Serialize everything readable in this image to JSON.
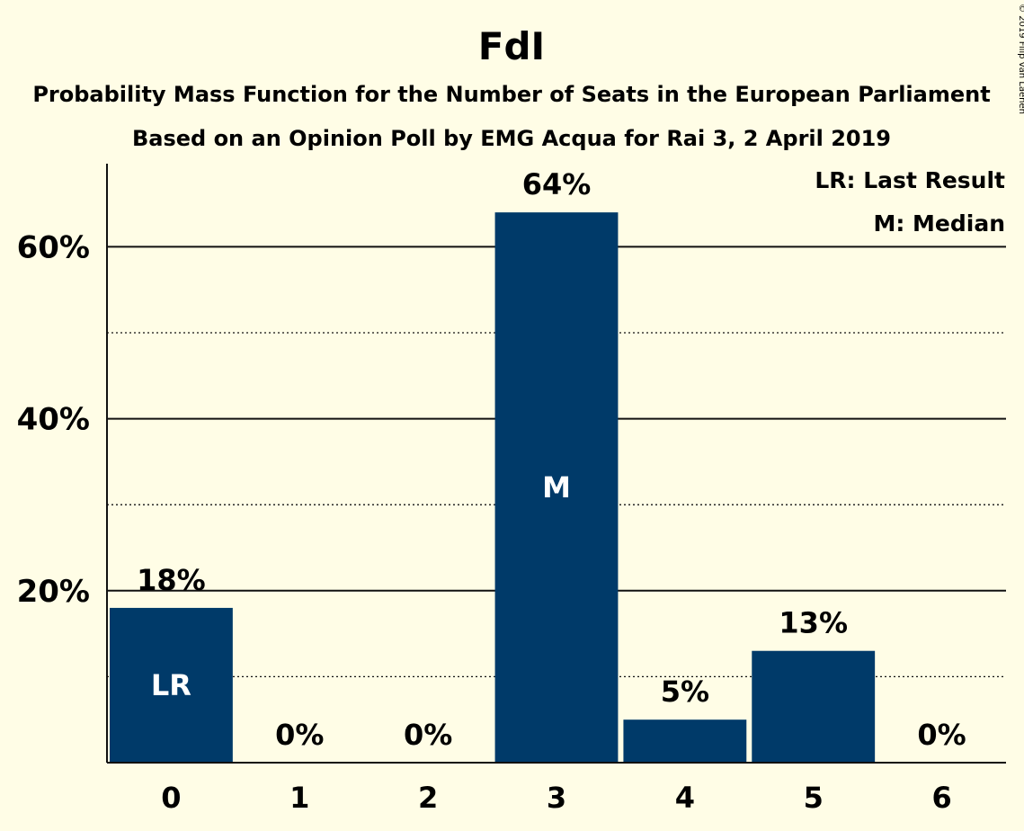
{
  "chart_data": {
    "type": "bar",
    "title": "FdI",
    "subtitle_lines": [
      "Probability Mass Function for the Number of Seats in the European Parliament",
      "Based on an Opinion Poll by EMG Acqua for Rai 3, 2 April 2019"
    ],
    "categories": [
      "0",
      "1",
      "2",
      "3",
      "4",
      "5",
      "6"
    ],
    "values": [
      18,
      0,
      0,
      64,
      5,
      13,
      0
    ],
    "value_labels": [
      "18%",
      "0%",
      "0%",
      "64%",
      "5%",
      "13%",
      "0%"
    ],
    "in_bar_markers": [
      {
        "category": "0",
        "text": "LR"
      },
      {
        "category": "3",
        "text": "M"
      }
    ],
    "ylim": [
      0,
      70
    ],
    "yticks": [
      20,
      40,
      60
    ],
    "ytick_labels": [
      "20%",
      "40%",
      "60%"
    ],
    "minor_gridlines": [
      10,
      30,
      50
    ],
    "legend": [
      "LR: Last Result",
      "M: Median"
    ],
    "legend_placement": "top-right",
    "grid": true,
    "bar_color": "#003a69"
  },
  "copyright": "© 2019 Filip van Laenen"
}
